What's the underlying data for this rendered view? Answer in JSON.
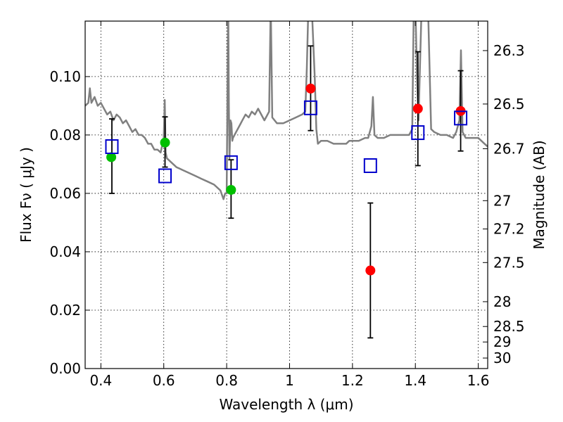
{
  "chart_data": {
    "type": "scatter",
    "xlabel": "Wavelength  λ (μm)",
    "ylabel": "Flux  Fν  ( μJy )",
    "ylabel_right": "Magnitude (AB)",
    "xlim": [
      0.35,
      1.63
    ],
    "ylim": [
      0.0,
      0.119
    ],
    "x_ticks": [
      0.4,
      0.6,
      0.8,
      1.0,
      1.2,
      1.4,
      1.6
    ],
    "x_tick_labels": [
      "0.4",
      "0.6",
      "0.8",
      "1",
      "1.2",
      "1.4",
      "1.6"
    ],
    "y_ticks": [
      0.0,
      0.02,
      0.04,
      0.06,
      0.08,
      0.1
    ],
    "y_tick_labels": [
      "0.00",
      "0.02",
      "0.04",
      "0.06",
      "0.08",
      "0.10"
    ],
    "right_ticks": [
      {
        "label": "26.3",
        "flux": 0.1089
      },
      {
        "label": "26.5",
        "flux": 0.0906
      },
      {
        "label": "26.7",
        "flux": 0.0753
      },
      {
        "label": "27",
        "flux": 0.0575
      },
      {
        "label": "27.2",
        "flux": 0.0478
      },
      {
        "label": "27.5",
        "flux": 0.0363
      },
      {
        "label": "28",
        "flux": 0.0229
      },
      {
        "label": "28.5",
        "flux": 0.0144
      },
      {
        "label": "29",
        "flux": 0.0091
      },
      {
        "label": "30",
        "flux": 0.0036
      }
    ],
    "grid": true,
    "series": [
      {
        "kind": "line",
        "color": "#808080",
        "x": [
          0.35,
          0.36,
          0.365,
          0.37,
          0.38,
          0.39,
          0.4,
          0.41,
          0.42,
          0.43,
          0.44,
          0.45,
          0.46,
          0.47,
          0.48,
          0.49,
          0.5,
          0.51,
          0.52,
          0.53,
          0.54,
          0.55,
          0.56,
          0.57,
          0.58,
          0.59,
          0.6,
          0.603,
          0.606,
          0.61,
          0.62,
          0.64,
          0.66,
          0.68,
          0.7,
          0.72,
          0.74,
          0.76,
          0.78,
          0.79,
          0.795,
          0.8,
          0.803,
          0.805,
          0.807,
          0.809,
          0.812,
          0.815,
          0.818,
          0.82,
          0.83,
          0.84,
          0.85,
          0.86,
          0.87,
          0.88,
          0.89,
          0.9,
          0.92,
          0.935,
          0.94,
          0.945,
          0.96,
          0.98,
          1.0,
          1.02,
          1.04,
          1.05,
          1.055,
          1.06,
          1.065,
          1.07,
          1.08,
          1.085,
          1.09,
          1.1,
          1.12,
          1.14,
          1.16,
          1.18,
          1.19,
          1.2,
          1.22,
          1.24,
          1.25,
          1.26,
          1.265,
          1.27,
          1.28,
          1.3,
          1.32,
          1.34,
          1.36,
          1.38,
          1.39,
          1.395,
          1.4,
          1.405,
          1.41,
          1.42,
          1.43,
          1.44,
          1.45,
          1.46,
          1.48,
          1.5,
          1.52,
          1.53,
          1.54,
          1.545,
          1.55,
          1.56,
          1.58,
          1.6,
          1.62,
          1.63
        ],
        "y": [
          0.09,
          0.091,
          0.096,
          0.091,
          0.093,
          0.09,
          0.091,
          0.089,
          0.087,
          0.088,
          0.085,
          0.087,
          0.086,
          0.084,
          0.085,
          0.083,
          0.081,
          0.082,
          0.08,
          0.08,
          0.079,
          0.077,
          0.077,
          0.075,
          0.075,
          0.074,
          0.079,
          0.092,
          0.074,
          0.072,
          0.071,
          0.069,
          0.068,
          0.067,
          0.066,
          0.065,
          0.064,
          0.063,
          0.061,
          0.058,
          0.06,
          0.06,
          0.1,
          0.125,
          0.09,
          0.072,
          0.085,
          0.084,
          0.078,
          0.079,
          0.081,
          0.083,
          0.085,
          0.087,
          0.086,
          0.088,
          0.087,
          0.089,
          0.085,
          0.088,
          0.125,
          0.086,
          0.084,
          0.084,
          0.085,
          0.086,
          0.087,
          0.088,
          0.103,
          0.125,
          0.125,
          0.125,
          0.1,
          0.082,
          0.077,
          0.078,
          0.078,
          0.077,
          0.077,
          0.077,
          0.078,
          0.078,
          0.078,
          0.079,
          0.079,
          0.083,
          0.093,
          0.08,
          0.079,
          0.079,
          0.08,
          0.08,
          0.08,
          0.08,
          0.082,
          0.125,
          0.125,
          0.1,
          0.085,
          0.125,
          0.125,
          0.125,
          0.082,
          0.081,
          0.08,
          0.08,
          0.079,
          0.081,
          0.085,
          0.109,
          0.081,
          0.079,
          0.079,
          0.079,
          0.077,
          0.076
        ]
      },
      {
        "kind": "points",
        "name": "",
        "color": "#00bf00",
        "marker": "circle",
        "x": [
          0.433,
          0.604,
          0.814
        ],
        "y": [
          0.0724,
          0.0774,
          0.0612
        ]
      },
      {
        "kind": "points",
        "color": "#ff0000",
        "marker": "circle",
        "x": [
          1.067,
          1.257,
          1.408,
          1.544
        ],
        "y": [
          0.0959,
          0.0336,
          0.089,
          0.0882
        ]
      },
      {
        "kind": "errorbars",
        "color": "#000000",
        "x": [
          0.435,
          0.604,
          0.814,
          1.067,
          1.257,
          1.408,
          1.544
        ],
        "lo": [
          0.06,
          0.069,
          0.0515,
          0.0815,
          0.0105,
          0.0695,
          0.0745
        ],
        "hi": [
          0.0855,
          0.0862,
          0.0715,
          0.1105,
          0.0567,
          0.1085,
          0.102
        ]
      },
      {
        "kind": "points",
        "color": "#0000cc",
        "marker": "square-open",
        "x": [
          0.435,
          0.604,
          0.814,
          1.067,
          1.257,
          1.408,
          1.544
        ],
        "y": [
          0.076,
          0.066,
          0.0705,
          0.0893,
          0.0695,
          0.0808,
          0.0858
        ]
      }
    ]
  }
}
